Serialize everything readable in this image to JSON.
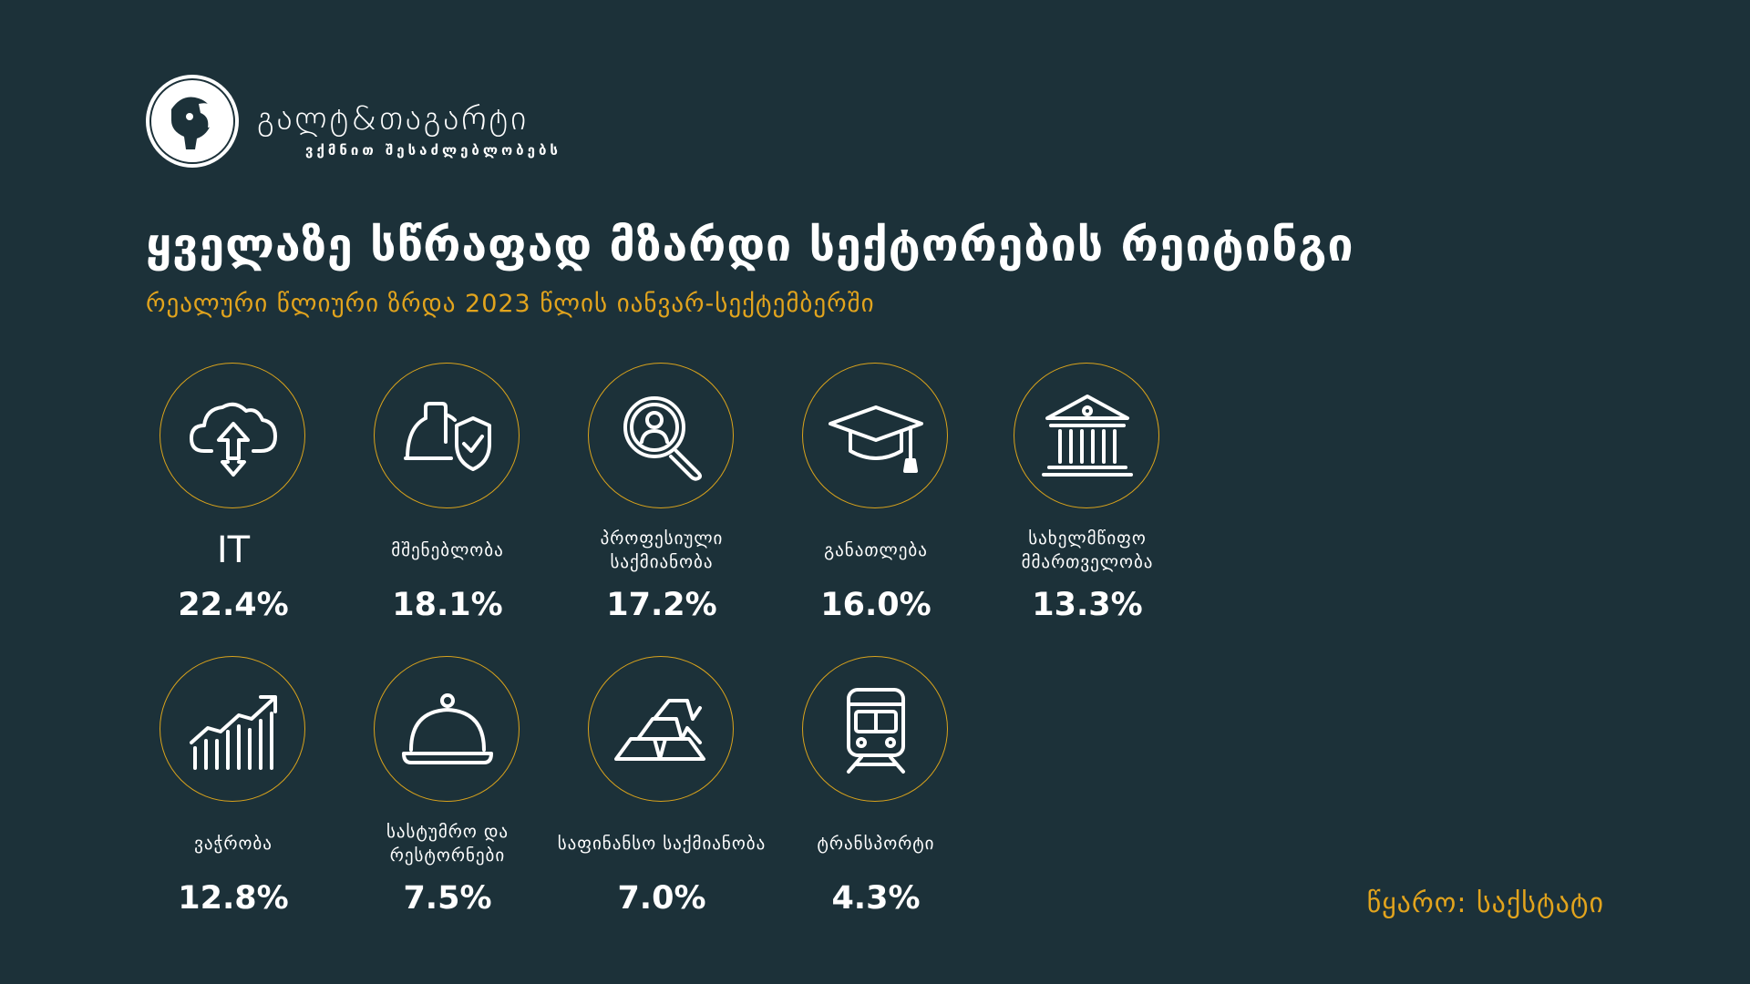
{
  "brand": {
    "name": "გალტ&თაგარტი",
    "tagline": "ვქმნით შესაძლებლობებს"
  },
  "header": {
    "title": "ყველაზე სწრაფად მზარდი სექტორების რეიტინგი",
    "subtitle": "რეალური წლიური ზრდა 2023 წლის იანვარ-სექტემბერში"
  },
  "accent_color": "#e2a41d",
  "background_color": "#1c3139",
  "sectors": [
    {
      "icon": "cloud-upload-icon",
      "label": "IT",
      "value": "22.4%"
    },
    {
      "icon": "hardhat-shield-icon",
      "label": "მშენებლობა",
      "value": "18.1%"
    },
    {
      "icon": "search-person-icon",
      "label": "პროფესიული საქმიანობა",
      "value": "17.2%"
    },
    {
      "icon": "graduation-cap-icon",
      "label": "განათლება",
      "value": "16.0%"
    },
    {
      "icon": "government-building-icon",
      "label": "სახელმწიფო მმართველობა",
      "value": "13.3%"
    },
    {
      "icon": "growth-chart-icon",
      "label": "ვაჭრობა",
      "value": "12.8%"
    },
    {
      "icon": "food-cloche-icon",
      "label": "სასტუმრო და რესტორნები",
      "value": "7.5%"
    },
    {
      "icon": "gold-bars-icon",
      "label": "საფინანსო საქმიანობა",
      "value": "7.0%"
    },
    {
      "icon": "train-icon",
      "label": "ტრანსპორტი",
      "value": "4.3%"
    }
  ],
  "source": "წყარო: საქსტატი"
}
